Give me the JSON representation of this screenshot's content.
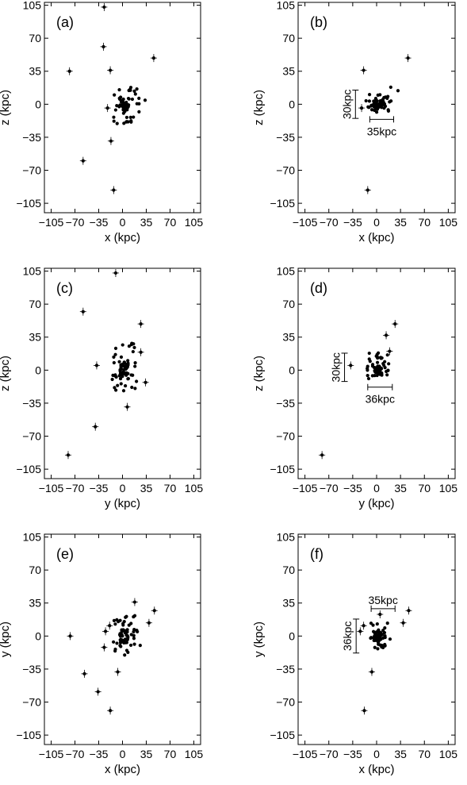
{
  "chart_data": [
    {
      "panel": "(a)",
      "type": "scatter",
      "xlabel": "x (kpc)",
      "ylabel": "z (kpc)",
      "xlim": [
        -115,
        115
      ],
      "ylim": [
        -115,
        108
      ],
      "ticks": [
        -105,
        -70,
        -35,
        0,
        35,
        70,
        105
      ],
      "xticklabels": [
        "−105",
        "−70",
        "−35",
        "0",
        "35",
        "70",
        "105"
      ],
      "yticklabels": [
        "105",
        "70",
        "35",
        "0",
        "−35",
        "−70",
        "−105"
      ],
      "outliers": [
        {
          "x": -27,
          "y": 103
        },
        {
          "x": -28,
          "y": 61
        },
        {
          "x": -78,
          "y": 35
        },
        {
          "x": -18,
          "y": 36
        },
        {
          "x": 46,
          "y": 49
        },
        {
          "x": -22,
          "y": -4
        },
        {
          "x": -17,
          "y": -39
        },
        {
          "x": -58,
          "y": -60
        },
        {
          "x": -13,
          "y": -91
        }
      ],
      "clump": {
        "x": [
          -5,
          36
        ],
        "y": [
          -22,
          19
        ]
      },
      "scale_bars": []
    },
    {
      "panel": "(b)",
      "type": "scatter",
      "xlabel": "x (kpc)",
      "ylabel": "z (kpc)",
      "xlim": [
        -115,
        115
      ],
      "ylim": [
        -115,
        108
      ],
      "ticks": [
        -105,
        -70,
        -35,
        0,
        35,
        70,
        105
      ],
      "xticklabels": [
        "−105",
        "−70",
        "−35",
        "0",
        "35",
        "70",
        "105"
      ],
      "yticklabels": [
        "105",
        "70",
        "35",
        "0",
        "−35",
        "−70",
        "−105"
      ],
      "outliers": [
        {
          "x": -19,
          "y": 36
        },
        {
          "x": 46,
          "y": 49
        },
        {
          "x": -22,
          "y": -4
        },
        {
          "x": -13,
          "y": -91
        }
      ],
      "clump": {
        "x": [
          -3,
          35
        ],
        "y": [
          -4,
          20
        ]
      },
      "scale_bars": [
        {
          "orient": "v",
          "label": "30kpc",
          "at": -31,
          "from": -15,
          "to": 15
        },
        {
          "orient": "h",
          "label": "35kpc",
          "at": -16,
          "from": -10,
          "to": 25
        }
      ]
    },
    {
      "panel": "(c)",
      "type": "scatter",
      "xlabel": "y (kpc)",
      "ylabel": "z (kpc)",
      "xlim": [
        -115,
        115
      ],
      "ylim": [
        -115,
        108
      ],
      "ticks": [
        -105,
        -70,
        -35,
        0,
        35,
        70,
        105
      ],
      "xticklabels": [
        "−105",
        "−70",
        "−35",
        "0",
        "35",
        "70",
        "105"
      ],
      "yticklabels": [
        "105",
        "70",
        "35",
        "0",
        "−35",
        "−70",
        "−105"
      ],
      "outliers": [
        {
          "x": -10,
          "y": 103
        },
        {
          "x": -58,
          "y": 62
        },
        {
          "x": 27,
          "y": 49
        },
        {
          "x": -38,
          "y": 5
        },
        {
          "x": 27,
          "y": 19
        },
        {
          "x": 34,
          "y": -13
        },
        {
          "x": 7,
          "y": -39
        },
        {
          "x": -40,
          "y": -60
        },
        {
          "x": -80,
          "y": -90
        }
      ],
      "clump": {
        "x": [
          -14,
          24
        ],
        "y": [
          -17,
          36
        ]
      },
      "scale_bars": []
    },
    {
      "panel": "(d)",
      "type": "scatter",
      "xlabel": "y (kpc)",
      "ylabel": "z (kpc)",
      "xlim": [
        -115,
        115
      ],
      "ylim": [
        -115,
        108
      ],
      "ticks": [
        -105,
        -70,
        -35,
        0,
        35,
        70,
        105
      ],
      "xticklabels": [
        "−105",
        "−70",
        "−35",
        "0",
        "35",
        "70",
        "105"
      ],
      "yticklabels": [
        "105",
        "70",
        "35",
        "0",
        "−35",
        "−70",
        "−105"
      ],
      "outliers": [
        {
          "x": 27,
          "y": 49
        },
        {
          "x": 14,
          "y": 37
        },
        {
          "x": 19,
          "y": 20
        },
        {
          "x": -38,
          "y": 5
        },
        {
          "x": -80,
          "y": -90
        }
      ],
      "clump": {
        "x": [
          -14,
          18
        ],
        "y": [
          -6,
          21
        ]
      },
      "scale_bars": [
        {
          "orient": "v",
          "label": "30kpc",
          "at": -47,
          "from": -12,
          "to": 18
        },
        {
          "orient": "h",
          "label": "36kpc",
          "at": -18,
          "from": -13,
          "to": 23
        }
      ]
    },
    {
      "panel": "(e)",
      "type": "scatter",
      "xlabel": "x (kpc)",
      "ylabel": "y (kpc)",
      "xlim": [
        -115,
        115
      ],
      "ylim": [
        -115,
        108
      ],
      "ticks": [
        -105,
        -70,
        -35,
        0,
        35,
        70,
        105
      ],
      "xticklabels": [
        "−105",
        "−70",
        "−35",
        "0",
        "35",
        "70",
        "105"
      ],
      "yticklabels": [
        "105",
        "70",
        "35",
        "0",
        "−35",
        "−70",
        "−105"
      ],
      "outliers": [
        {
          "x": -77,
          "y": 0
        },
        {
          "x": -56,
          "y": -40
        },
        {
          "x": -36,
          "y": -59
        },
        {
          "x": -18,
          "y": -79
        },
        {
          "x": -7,
          "y": -38
        },
        {
          "x": 18,
          "y": 36
        },
        {
          "x": 47,
          "y": 27
        },
        {
          "x": 39,
          "y": 14
        },
        {
          "x": -27,
          "y": -12
        },
        {
          "x": -25,
          "y": 5
        },
        {
          "x": -19,
          "y": 11
        }
      ],
      "clump": {
        "x": [
          -5,
          30
        ],
        "y": [
          -18,
          24
        ]
      },
      "scale_bars": []
    },
    {
      "panel": "(f)",
      "type": "scatter",
      "xlabel": "x (kpc)",
      "ylabel": "y (kpc)",
      "xlim": [
        -115,
        115
      ],
      "ylim": [
        -115,
        108
      ],
      "ticks": [
        -105,
        -70,
        -35,
        0,
        35,
        70,
        105
      ],
      "xticklabels": [
        "−105",
        "−70",
        "−35",
        "0",
        "35",
        "70",
        "105"
      ],
      "yticklabels": [
        "105",
        "70",
        "35",
        "0",
        "−35",
        "−70",
        "−105"
      ],
      "outliers": [
        {
          "x": 47,
          "y": 27
        },
        {
          "x": 39,
          "y": 14
        },
        {
          "x": 5,
          "y": 23
        },
        {
          "x": -7,
          "y": -38
        },
        {
          "x": -18,
          "y": -79
        },
        {
          "x": -24,
          "y": 5
        },
        {
          "x": -19,
          "y": 11
        }
      ],
      "clump": {
        "x": [
          -4,
          22
        ],
        "y": [
          -14,
          14
        ]
      },
      "scale_bars": [
        {
          "orient": "v",
          "label": "36kpc",
          "at": -30,
          "from": -18,
          "to": 18
        },
        {
          "orient": "h",
          "label": "35kpc",
          "at": 29,
          "from": -8,
          "to": 27
        }
      ]
    }
  ]
}
